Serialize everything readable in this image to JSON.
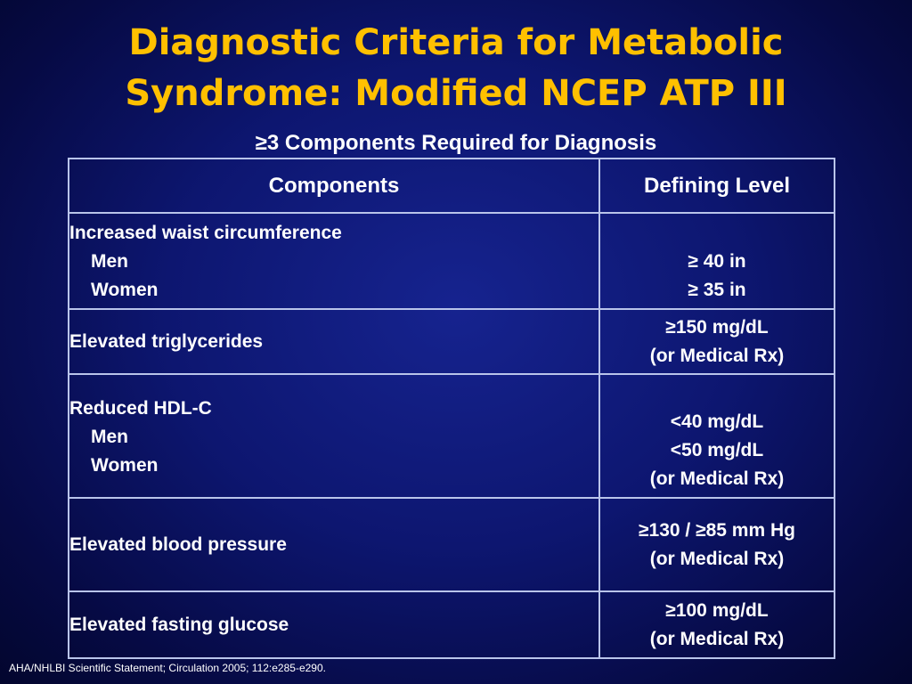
{
  "title": {
    "line1": "Diagnostic Criteria for Metabolic",
    "line2": "Syndrome: Modified NCEP ATP III"
  },
  "subtitle": "≥3 Components Required for Diagnosis",
  "table": {
    "headers": {
      "components": "Components",
      "defining_level": "Defining Level"
    },
    "rows": {
      "waist": {
        "component": "Increased waist circumference",
        "men": "Men",
        "women": "Women",
        "men_level": "≥ 40 in",
        "women_level": "≥ 35 in"
      },
      "triglycerides": {
        "component": "Elevated triglycerides",
        "level": "≥150 mg/dL",
        "note": "(or Medical Rx)"
      },
      "hdl": {
        "component": "Reduced HDL-C",
        "men": "Men",
        "women": "Women",
        "men_level": "<40 mg/dL",
        "women_level": "<50 mg/dL",
        "note": "(or Medical Rx)"
      },
      "blood_pressure": {
        "component": "Elevated blood pressure",
        "level": "≥130 / ≥85 mm Hg",
        "note": "(or Medical Rx)"
      },
      "glucose": {
        "component": "Elevated fasting glucose",
        "level": "≥100 mg/dL",
        "note": "(or Medical Rx)"
      }
    }
  },
  "footnote": "AHA/NHLBI Scientific Statement; Circulation 2005; 112:e285-e290.",
  "colors": {
    "title": "#ffc000",
    "text": "#ffffff",
    "background": "#0d1670",
    "border": "#b9c4ea"
  }
}
